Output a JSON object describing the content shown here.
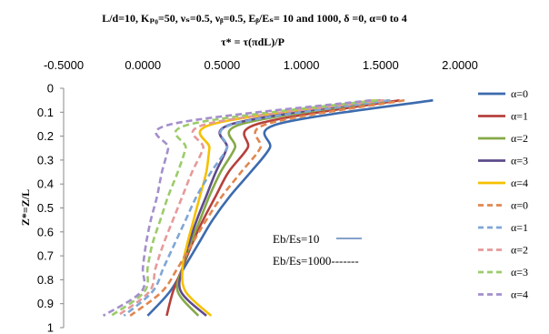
{
  "chart_data": {
    "type": "line",
    "title": "L/d=10, Kₚ₀=50, νₛ=0.5, νᵦ=0.5, Eᵦ/Eₛ= 10 and 1000, δ =0, α=0 to 4",
    "subtitle": "τ* = τ(πdL)/P",
    "ylabel": "Z*=Z/L",
    "xlim": [
      -0.5,
      2.0
    ],
    "ylim": [
      0,
      1
    ],
    "y_reversed": true,
    "x_axis_position": "top",
    "x_ticks": [
      "-0.5000",
      "0.0000",
      "0.5000",
      "1.0000",
      "1.5000",
      "2.0000"
    ],
    "y_ticks": [
      "0",
      "0.1",
      "0.2",
      "0.3",
      "0.4",
      "0.5",
      "0.6",
      "0.7",
      "0.8",
      "0.9",
      "1"
    ],
    "grid": false,
    "legend_position": "right",
    "annotations": [
      "Eb/Es=10",
      "Eb/Es=1000-------"
    ],
    "y": [
      0.05,
      0.15,
      0.25,
      0.35,
      0.45,
      0.55,
      0.65,
      0.75,
      0.85,
      0.95
    ],
    "series": [
      {
        "name": "α=0",
        "group": "Eb/Es=10",
        "color": "#3C6BAE",
        "dash": false,
        "x": [
          1.83,
          0.85,
          0.8,
          0.68,
          0.55,
          0.44,
          0.35,
          0.26,
          0.17,
          0.03
        ]
      },
      {
        "name": "α=1",
        "group": "Eb/Es=10",
        "color": "#B5403B",
        "dash": false,
        "x": [
          1.62,
          0.72,
          0.66,
          0.54,
          0.46,
          0.38,
          0.31,
          0.25,
          0.19,
          0.15
        ]
      },
      {
        "name": "α=2",
        "group": "Eb/Es=10",
        "color": "#86A948",
        "dash": false,
        "x": [
          1.55,
          0.62,
          0.58,
          0.49,
          0.42,
          0.36,
          0.3,
          0.25,
          0.22,
          0.35
        ]
      },
      {
        "name": "α=3",
        "group": "Eb/Es=10",
        "color": "#5E4B8B",
        "dash": false,
        "x": [
          1.5,
          0.56,
          0.53,
          0.46,
          0.4,
          0.34,
          0.29,
          0.25,
          0.24,
          0.4
        ]
      },
      {
        "name": "α=4",
        "group": "Eb/Es=10",
        "color": "#F5C100",
        "dash": false,
        "x": [
          1.46,
          0.44,
          0.42,
          0.4,
          0.36,
          0.32,
          0.28,
          0.25,
          0.27,
          0.43
        ]
      },
      {
        "name": "α=0",
        "group": "Eb/Es=1000",
        "color": "#E0874F",
        "dash": true,
        "x": [
          1.65,
          0.78,
          0.74,
          0.62,
          0.5,
          0.4,
          0.31,
          0.22,
          0.12,
          -0.08
        ]
      },
      {
        "name": "α=1",
        "group": "Eb/Es=1000",
        "color": "#7FA6D6",
        "dash": true,
        "x": [
          1.56,
          0.57,
          0.53,
          0.43,
          0.34,
          0.27,
          0.2,
          0.13,
          0.06,
          -0.12
        ]
      },
      {
        "name": "α=2",
        "group": "Eb/Es=1000",
        "color": "#E59A9A",
        "dash": true,
        "x": [
          1.52,
          0.4,
          0.38,
          0.31,
          0.25,
          0.19,
          0.13,
          0.08,
          0.04,
          -0.16
        ]
      },
      {
        "name": "α=3",
        "group": "Eb/Es=1000",
        "color": "#9CCB6A",
        "dash": true,
        "x": [
          1.48,
          0.3,
          0.27,
          0.22,
          0.16,
          0.11,
          0.06,
          0.03,
          0.01,
          -0.2
        ]
      },
      {
        "name": "α=4",
        "group": "Eb/Es=1000",
        "color": "#A48FCB",
        "dash": true,
        "x": [
          1.44,
          0.18,
          0.16,
          0.12,
          0.09,
          0.05,
          0.02,
          0.0,
          -0.01,
          -0.25
        ]
      }
    ]
  }
}
